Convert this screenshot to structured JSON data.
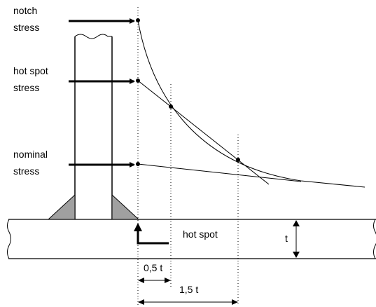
{
  "labels": {
    "notch_stress": [
      "notch",
      "stress"
    ],
    "hot_spot_stress": [
      "hot spot",
      "stress"
    ],
    "nominal_stress": [
      "nominal",
      "stress"
    ],
    "hot_spot": "hot spot",
    "thickness": "t",
    "dim_half_t": "0,5 t",
    "dim_one_half_t": "1,5 t"
  },
  "colors": {
    "line": "#000000",
    "weld_fill": "#a0a0a0",
    "background": "#ffffff"
  }
}
